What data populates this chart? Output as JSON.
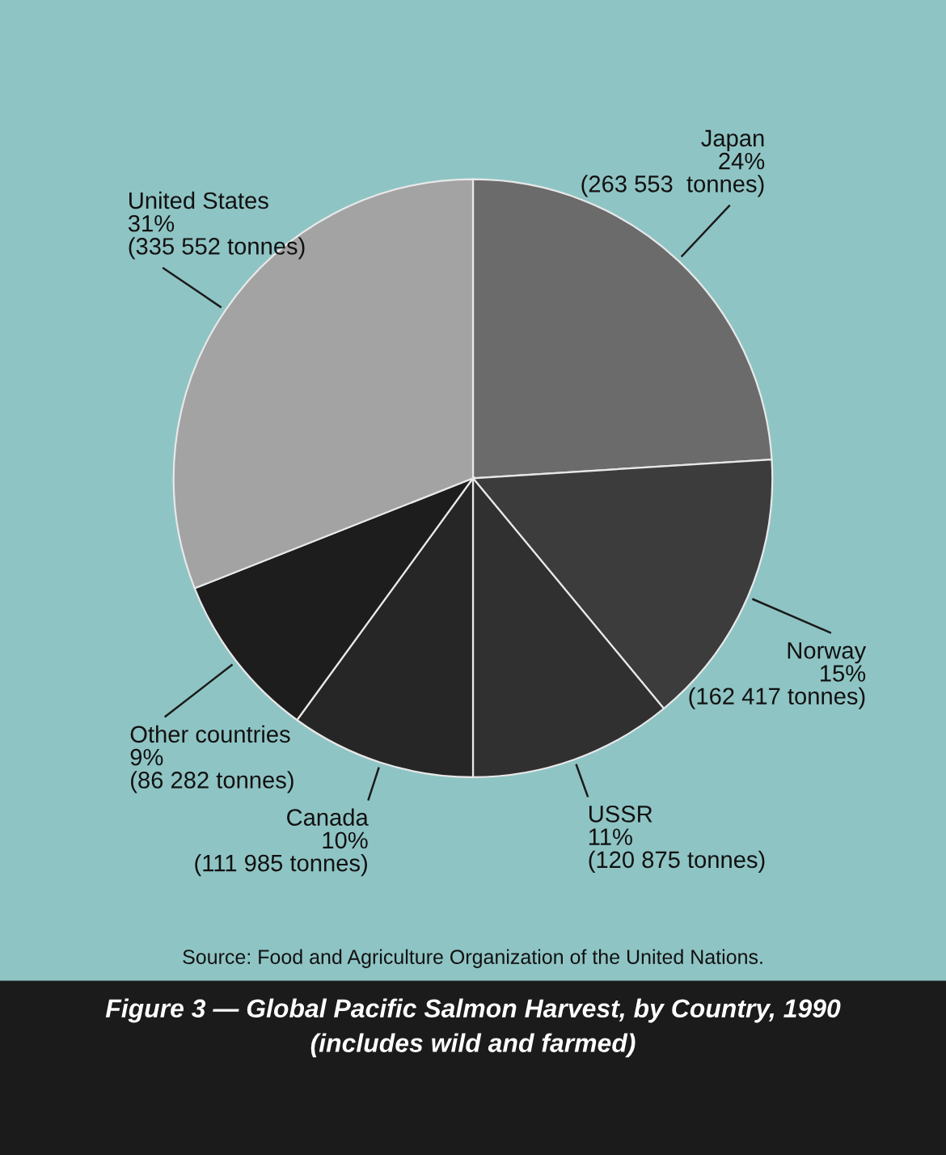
{
  "chart_data": {
    "type": "pie",
    "title": "Figure 3 — Global Pacific Salmon Harvest, by Country, 1990",
    "subtitle": "(includes wild and farmed)",
    "categories": [
      "Japan",
      "Norway",
      "USSR",
      "Canada",
      "Other countries",
      "United States"
    ],
    "values": [
      24,
      15,
      11,
      10,
      9,
      31
    ],
    "value_labels": [
      "24%\n(263 553  tonnes)",
      "15%\n(162 417 tonnes)",
      "11%\n(120 875 tonnes)",
      "10%\n(111 985 tonnes)",
      "9%\n(86 282 tonnes)",
      "31%\n(335 552 tonnes)"
    ],
    "colors": [
      "#6b6b6b",
      "#3c3c3c",
      "#303030",
      "#262626",
      "#1d1d1d",
      "#a3a3a3"
    ],
    "annotations": [
      "Source: Food and Agriculture Organization of the United Nations."
    ]
  }
}
